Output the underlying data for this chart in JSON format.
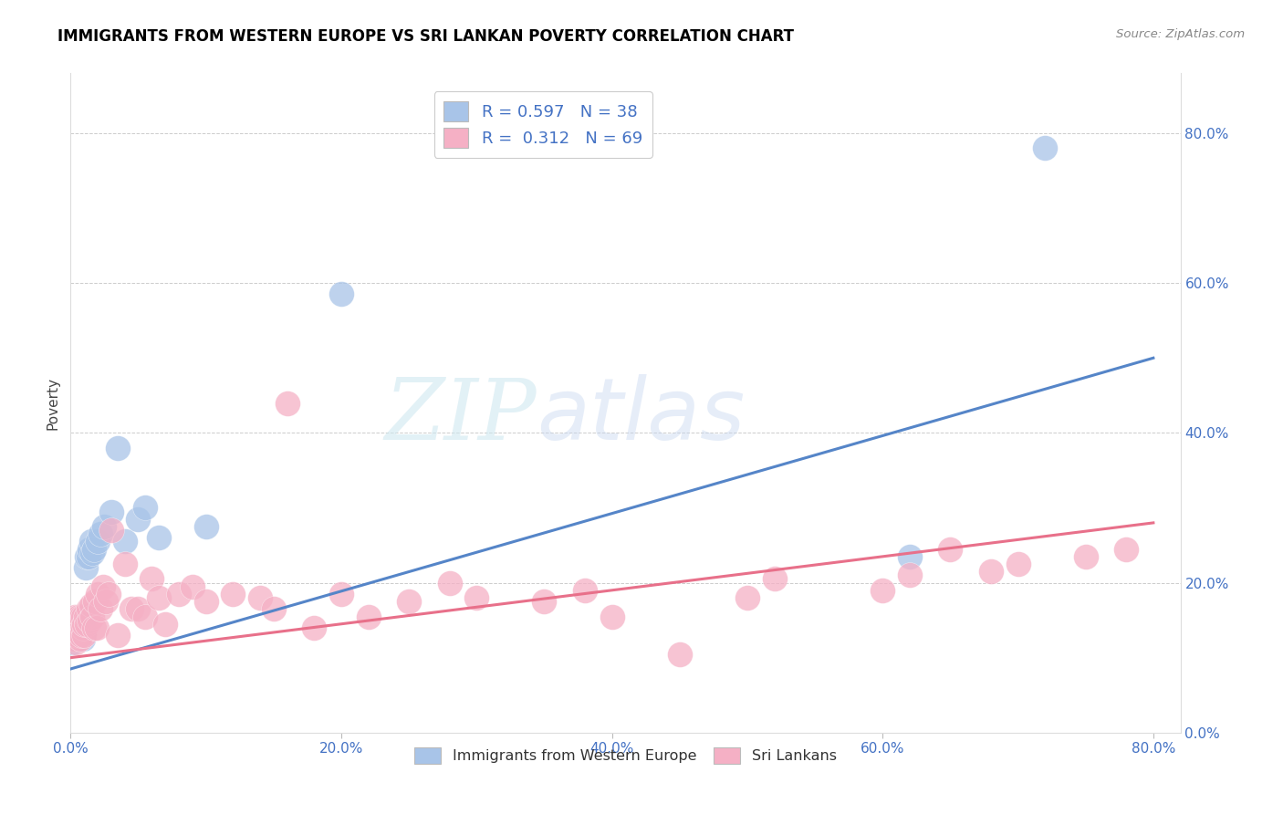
{
  "title": "IMMIGRANTS FROM WESTERN EUROPE VS SRI LANKAN POVERTY CORRELATION CHART",
  "source": "Source: ZipAtlas.com",
  "ylabel": "Poverty",
  "ytick_values": [
    0.0,
    0.2,
    0.4,
    0.6,
    0.8
  ],
  "xtick_values": [
    0.0,
    0.2,
    0.4,
    0.6,
    0.8
  ],
  "blue_R": 0.597,
  "blue_N": 38,
  "pink_R": 0.312,
  "pink_N": 69,
  "blue_color": "#A8C4E8",
  "pink_color": "#F5B0C5",
  "blue_line_color": "#5585C8",
  "pink_line_color": "#E8708A",
  "watermark_zip": "ZIP",
  "watermark_atlas": "atlas",
  "blue_line_x0": 0.0,
  "blue_line_y0": 0.085,
  "blue_line_x1": 0.8,
  "blue_line_y1": 0.5,
  "pink_line_x0": 0.0,
  "pink_line_y0": 0.1,
  "pink_line_x1": 0.8,
  "pink_line_y1": 0.28,
  "blue_points_x": [
    0.001,
    0.002,
    0.003,
    0.003,
    0.004,
    0.004,
    0.005,
    0.005,
    0.006,
    0.006,
    0.007,
    0.007,
    0.008,
    0.008,
    0.009,
    0.009,
    0.01,
    0.01,
    0.011,
    0.012,
    0.013,
    0.014,
    0.015,
    0.016,
    0.017,
    0.02,
    0.022,
    0.025,
    0.03,
    0.035,
    0.04,
    0.05,
    0.055,
    0.065,
    0.1,
    0.2,
    0.62,
    0.72
  ],
  "blue_points_y": [
    0.12,
    0.13,
    0.14,
    0.125,
    0.135,
    0.145,
    0.14,
    0.13,
    0.15,
    0.125,
    0.135,
    0.145,
    0.13,
    0.155,
    0.14,
    0.125,
    0.155,
    0.135,
    0.22,
    0.235,
    0.235,
    0.245,
    0.255,
    0.24,
    0.245,
    0.255,
    0.265,
    0.275,
    0.295,
    0.38,
    0.255,
    0.285,
    0.3,
    0.26,
    0.275,
    0.585,
    0.235,
    0.78
  ],
  "pink_points_x": [
    0.001,
    0.001,
    0.002,
    0.002,
    0.003,
    0.003,
    0.004,
    0.004,
    0.005,
    0.005,
    0.006,
    0.006,
    0.007,
    0.007,
    0.008,
    0.008,
    0.009,
    0.009,
    0.01,
    0.01,
    0.011,
    0.012,
    0.013,
    0.014,
    0.015,
    0.016,
    0.017,
    0.018,
    0.019,
    0.02,
    0.022,
    0.024,
    0.026,
    0.028,
    0.03,
    0.035,
    0.04,
    0.045,
    0.05,
    0.055,
    0.06,
    0.065,
    0.07,
    0.08,
    0.09,
    0.1,
    0.12,
    0.14,
    0.15,
    0.16,
    0.18,
    0.2,
    0.22,
    0.25,
    0.28,
    0.3,
    0.35,
    0.38,
    0.4,
    0.45,
    0.5,
    0.52,
    0.6,
    0.62,
    0.65,
    0.68,
    0.7,
    0.75,
    0.78
  ],
  "pink_points_y": [
    0.13,
    0.14,
    0.125,
    0.14,
    0.135,
    0.155,
    0.12,
    0.145,
    0.14,
    0.13,
    0.155,
    0.135,
    0.125,
    0.145,
    0.155,
    0.13,
    0.14,
    0.155,
    0.13,
    0.145,
    0.155,
    0.145,
    0.165,
    0.15,
    0.17,
    0.155,
    0.14,
    0.175,
    0.14,
    0.185,
    0.165,
    0.195,
    0.175,
    0.185,
    0.27,
    0.13,
    0.225,
    0.165,
    0.165,
    0.155,
    0.205,
    0.18,
    0.145,
    0.185,
    0.195,
    0.175,
    0.185,
    0.18,
    0.165,
    0.44,
    0.14,
    0.185,
    0.155,
    0.175,
    0.2,
    0.18,
    0.175,
    0.19,
    0.155,
    0.105,
    0.18,
    0.205,
    0.19,
    0.21,
    0.245,
    0.215,
    0.225,
    0.235,
    0.245
  ]
}
